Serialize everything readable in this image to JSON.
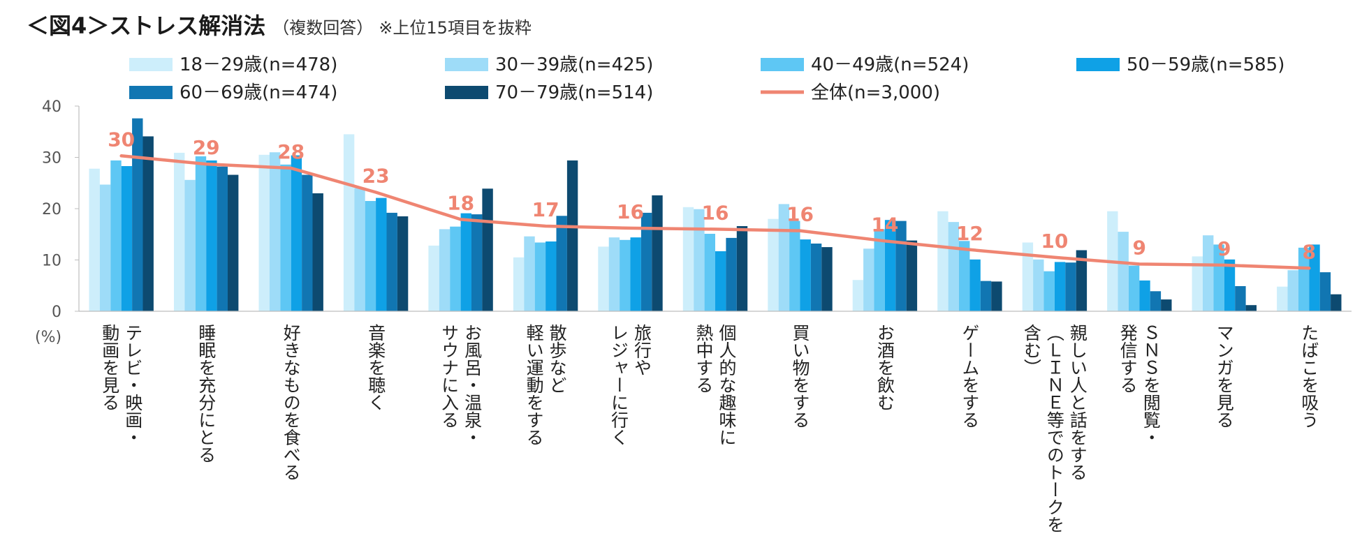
{
  "title": {
    "main": "＜図4＞ストレス解消法",
    "sub": "（複数回答）",
    "note": "※上位15項目を抜粋"
  },
  "chart_data": {
    "type": "bar",
    "unit_label": "(%)",
    "ylim": [
      0,
      40
    ],
    "yticks": [
      0,
      10,
      20,
      30,
      40
    ],
    "categories": [
      "テレビ・映画・動画を見る",
      "睡眠を充分にとる",
      "好きなものを食べる",
      "音楽を聴く",
      "お風呂・温泉・サウナに入る",
      "散歩など軽い運動をする",
      "旅行やレジャーに行く",
      "個人的な趣味に熱中する",
      "買い物をする",
      "お酒を飲む",
      "ゲームをする",
      "親しい人と話をする（LINE等でのトークを含む）",
      "SNSを閲覧・発信する",
      "マンガを見る",
      "たばこを吸う"
    ],
    "category_lines": [
      [
        "テレビ・映画・",
        "動画を見る"
      ],
      [
        "睡眠を充分にとる"
      ],
      [
        "好きなものを食べる"
      ],
      [
        "音楽を聴く"
      ],
      [
        "お風呂・温泉・",
        "サウナに入る"
      ],
      [
        "散歩など",
        "軽い運動をする"
      ],
      [
        "旅行や",
        "レジャーに行く"
      ],
      [
        "個人的な趣味に",
        "熱中する"
      ],
      [
        "買い物をする"
      ],
      [
        "お酒を飲む"
      ],
      [
        "ゲームをする"
      ],
      [
        "親しい人と話をする",
        "（ＬＩＮＥ等でのトークを",
        "含む）"
      ],
      [
        "ＳＮＳを閲覧・",
        "発信する"
      ],
      [
        "マンガを見る"
      ],
      [
        "たばこを吸う"
      ]
    ],
    "series": [
      {
        "name": "18－29歳(n=478)",
        "color": "#cdeefb",
        "values": [
          27.8,
          30.9,
          30.5,
          34.5,
          12.8,
          10.5,
          12.6,
          20.3,
          18.0,
          6.1,
          19.5,
          13.4,
          19.5,
          10.7,
          4.8
        ]
      },
      {
        "name": "30－39歳(n=425)",
        "color": "#9edcf8",
        "values": [
          24.7,
          25.6,
          31.0,
          24.0,
          16.0,
          14.6,
          14.4,
          19.9,
          20.9,
          12.2,
          17.4,
          10.1,
          15.5,
          14.8,
          8.0
        ]
      },
      {
        "name": "40－49歳(n=524)",
        "color": "#5ec7f4",
        "values": [
          29.4,
          30.2,
          28.6,
          21.5,
          16.5,
          13.4,
          13.9,
          15.1,
          17.6,
          16.0,
          13.7,
          7.8,
          8.9,
          13.0,
          12.4
        ]
      },
      {
        "name": "50－59歳(n=585)",
        "color": "#0fa1e6",
        "values": [
          28.3,
          29.4,
          30.4,
          22.1,
          19.1,
          13.6,
          14.4,
          11.7,
          14.0,
          17.8,
          10.1,
          9.6,
          6.0,
          10.1,
          13.0
        ]
      },
      {
        "name": "60－69歳(n=474)",
        "color": "#1176b2",
        "values": [
          37.6,
          28.2,
          26.6,
          19.2,
          18.9,
          18.6,
          19.2,
          14.3,
          13.2,
          17.6,
          5.9,
          9.5,
          3.9,
          4.9,
          7.6
        ]
      },
      {
        "name": "70－79歳(n=514)",
        "color": "#0d4a70",
        "values": [
          34.1,
          26.6,
          23.0,
          18.5,
          23.9,
          29.4,
          22.6,
          16.6,
          12.5,
          13.8,
          5.8,
          11.9,
          2.3,
          1.2,
          3.3
        ]
      }
    ],
    "overall": {
      "name": "全体(n=3,000)",
      "color": "#ef8572",
      "values": [
        30.3,
        28.7,
        27.9,
        23.2,
        17.9,
        16.6,
        16.2,
        16.0,
        15.7,
        13.7,
        12.0,
        10.5,
        9.2,
        9.0,
        8.4
      ],
      "labels": [
        "30",
        "29",
        "28",
        "23",
        "18",
        "17",
        "16",
        "16",
        "16",
        "14",
        "12",
        "10",
        "9",
        "9",
        "8"
      ]
    }
  }
}
